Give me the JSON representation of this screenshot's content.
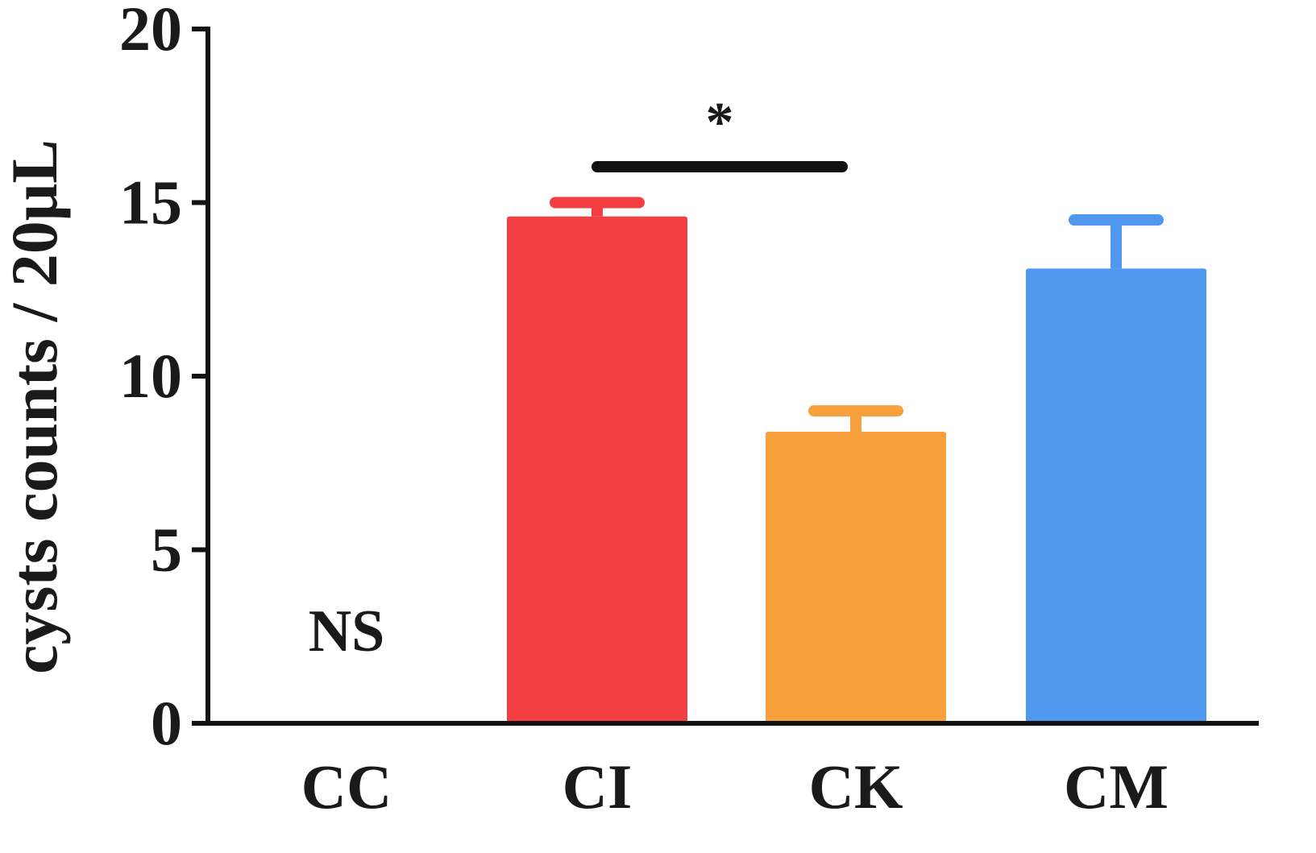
{
  "chart_data": {
    "type": "bar",
    "ylabel": "cysts counts / 20μL",
    "xlabel": "",
    "title": "",
    "ylim": [
      0,
      20
    ],
    "yticks": [
      0,
      5,
      10,
      15,
      20
    ],
    "grid": false,
    "categories": [
      "CC",
      "CI",
      "CK",
      "CM"
    ],
    "values": [
      0,
      14.6,
      8.4,
      13.1
    ],
    "errors": [
      0,
      0.4,
      0.6,
      1.4
    ],
    "colors": [
      "#ffffff",
      "#f43f42",
      "#f8a03c",
      "#4f97ef"
    ],
    "annotations": {
      "cc_text": "NS",
      "significance_text": "*",
      "significance_between": [
        "CI",
        "CK"
      ]
    }
  }
}
